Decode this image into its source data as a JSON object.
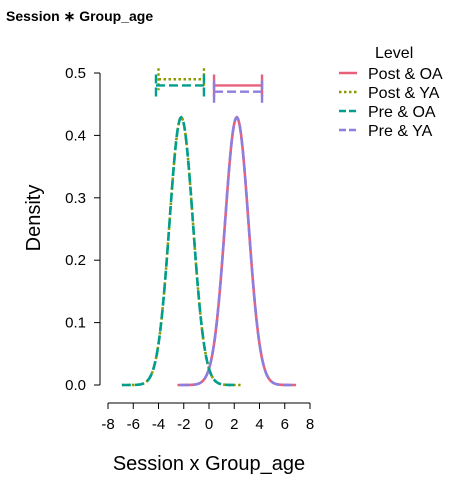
{
  "chart_data": {
    "type": "line",
    "title": "Session ∗ Group_age",
    "xlabel": "Session x Group_age",
    "ylabel": "Density",
    "xlim": [
      -8,
      8
    ],
    "ylim": [
      0,
      0.5
    ],
    "x_ticks": [
      "-8",
      "-6",
      "-4",
      "-2",
      "0",
      "2",
      "4",
      "6",
      "8"
    ],
    "y_ticks": [
      "0.0",
      "0.1",
      "0.2",
      "0.3",
      "0.4",
      "0.5"
    ],
    "legend_title": "Level",
    "legend_position": "top-right",
    "series": [
      {
        "name": "Post & OA",
        "color": "#E8607A",
        "dash": "solid",
        "mean": 2.2,
        "sd": 0.93,
        "interval": [
          0.4,
          4.2
        ],
        "interval_y": 0.48,
        "curve_range": [
          -2.5,
          6.9
        ]
      },
      {
        "name": "Post & YA",
        "color": "#8A9A00",
        "dash": "dotted",
        "mean": -2.2,
        "sd": 0.93,
        "interval": [
          -4.0,
          -0.4
        ],
        "interval_y": 0.49,
        "curve_range": [
          -6.9,
          2.5
        ]
      },
      {
        "name": "Pre & OA",
        "color": "#009E8E",
        "dash": "dashed",
        "mean": -2.2,
        "sd": 0.93,
        "interval": [
          -4.2,
          -0.4
        ],
        "interval_y": 0.48,
        "curve_range": [
          -6.9,
          2.2
        ]
      },
      {
        "name": "Pre & YA",
        "color": "#8C7FE0",
        "dash": "dashed",
        "mean": 2.2,
        "sd": 0.93,
        "interval": [
          0.4,
          4.2
        ],
        "interval_y": 0.47,
        "curve_range": [
          -2.3,
          6.9
        ]
      }
    ]
  }
}
